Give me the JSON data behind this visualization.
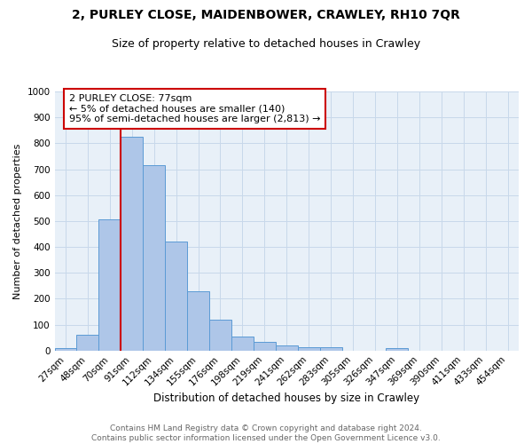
{
  "title1": "2, PURLEY CLOSE, MAIDENBOWER, CRAWLEY, RH10 7QR",
  "title2": "Size of property relative to detached houses in Crawley",
  "xlabel": "Distribution of detached houses by size in Crawley",
  "ylabel": "Number of detached properties",
  "categories": [
    "27sqm",
    "48sqm",
    "70sqm",
    "91sqm",
    "112sqm",
    "134sqm",
    "155sqm",
    "176sqm",
    "198sqm",
    "219sqm",
    "241sqm",
    "262sqm",
    "283sqm",
    "305sqm",
    "326sqm",
    "347sqm",
    "369sqm",
    "390sqm",
    "411sqm",
    "433sqm",
    "454sqm"
  ],
  "values": [
    8,
    60,
    505,
    825,
    715,
    420,
    230,
    120,
    55,
    35,
    20,
    12,
    12,
    0,
    0,
    8,
    0,
    0,
    0,
    0,
    0
  ],
  "bar_color": "#aec6e8",
  "bar_edge_color": "#5b9bd5",
  "vline_x": 2.5,
  "vline_color": "#cc0000",
  "annotation_text": "2 PURLEY CLOSE: 77sqm\n← 5% of detached houses are smaller (140)\n95% of semi-detached houses are larger (2,813) →",
  "annotation_box_color": "#ffffff",
  "annotation_box_edge": "#cc0000",
  "ylim": [
    0,
    1000
  ],
  "yticks": [
    0,
    100,
    200,
    300,
    400,
    500,
    600,
    700,
    800,
    900,
    1000
  ],
  "grid_color": "#c8d8ea",
  "background_color": "#e8f0f8",
  "footer_text": "Contains HM Land Registry data © Crown copyright and database right 2024.\nContains public sector information licensed under the Open Government Licence v3.0.",
  "title1_fontsize": 10,
  "title2_fontsize": 9,
  "xlabel_fontsize": 8.5,
  "ylabel_fontsize": 8,
  "tick_fontsize": 7.5,
  "annotation_fontsize": 8,
  "footer_fontsize": 6.5
}
